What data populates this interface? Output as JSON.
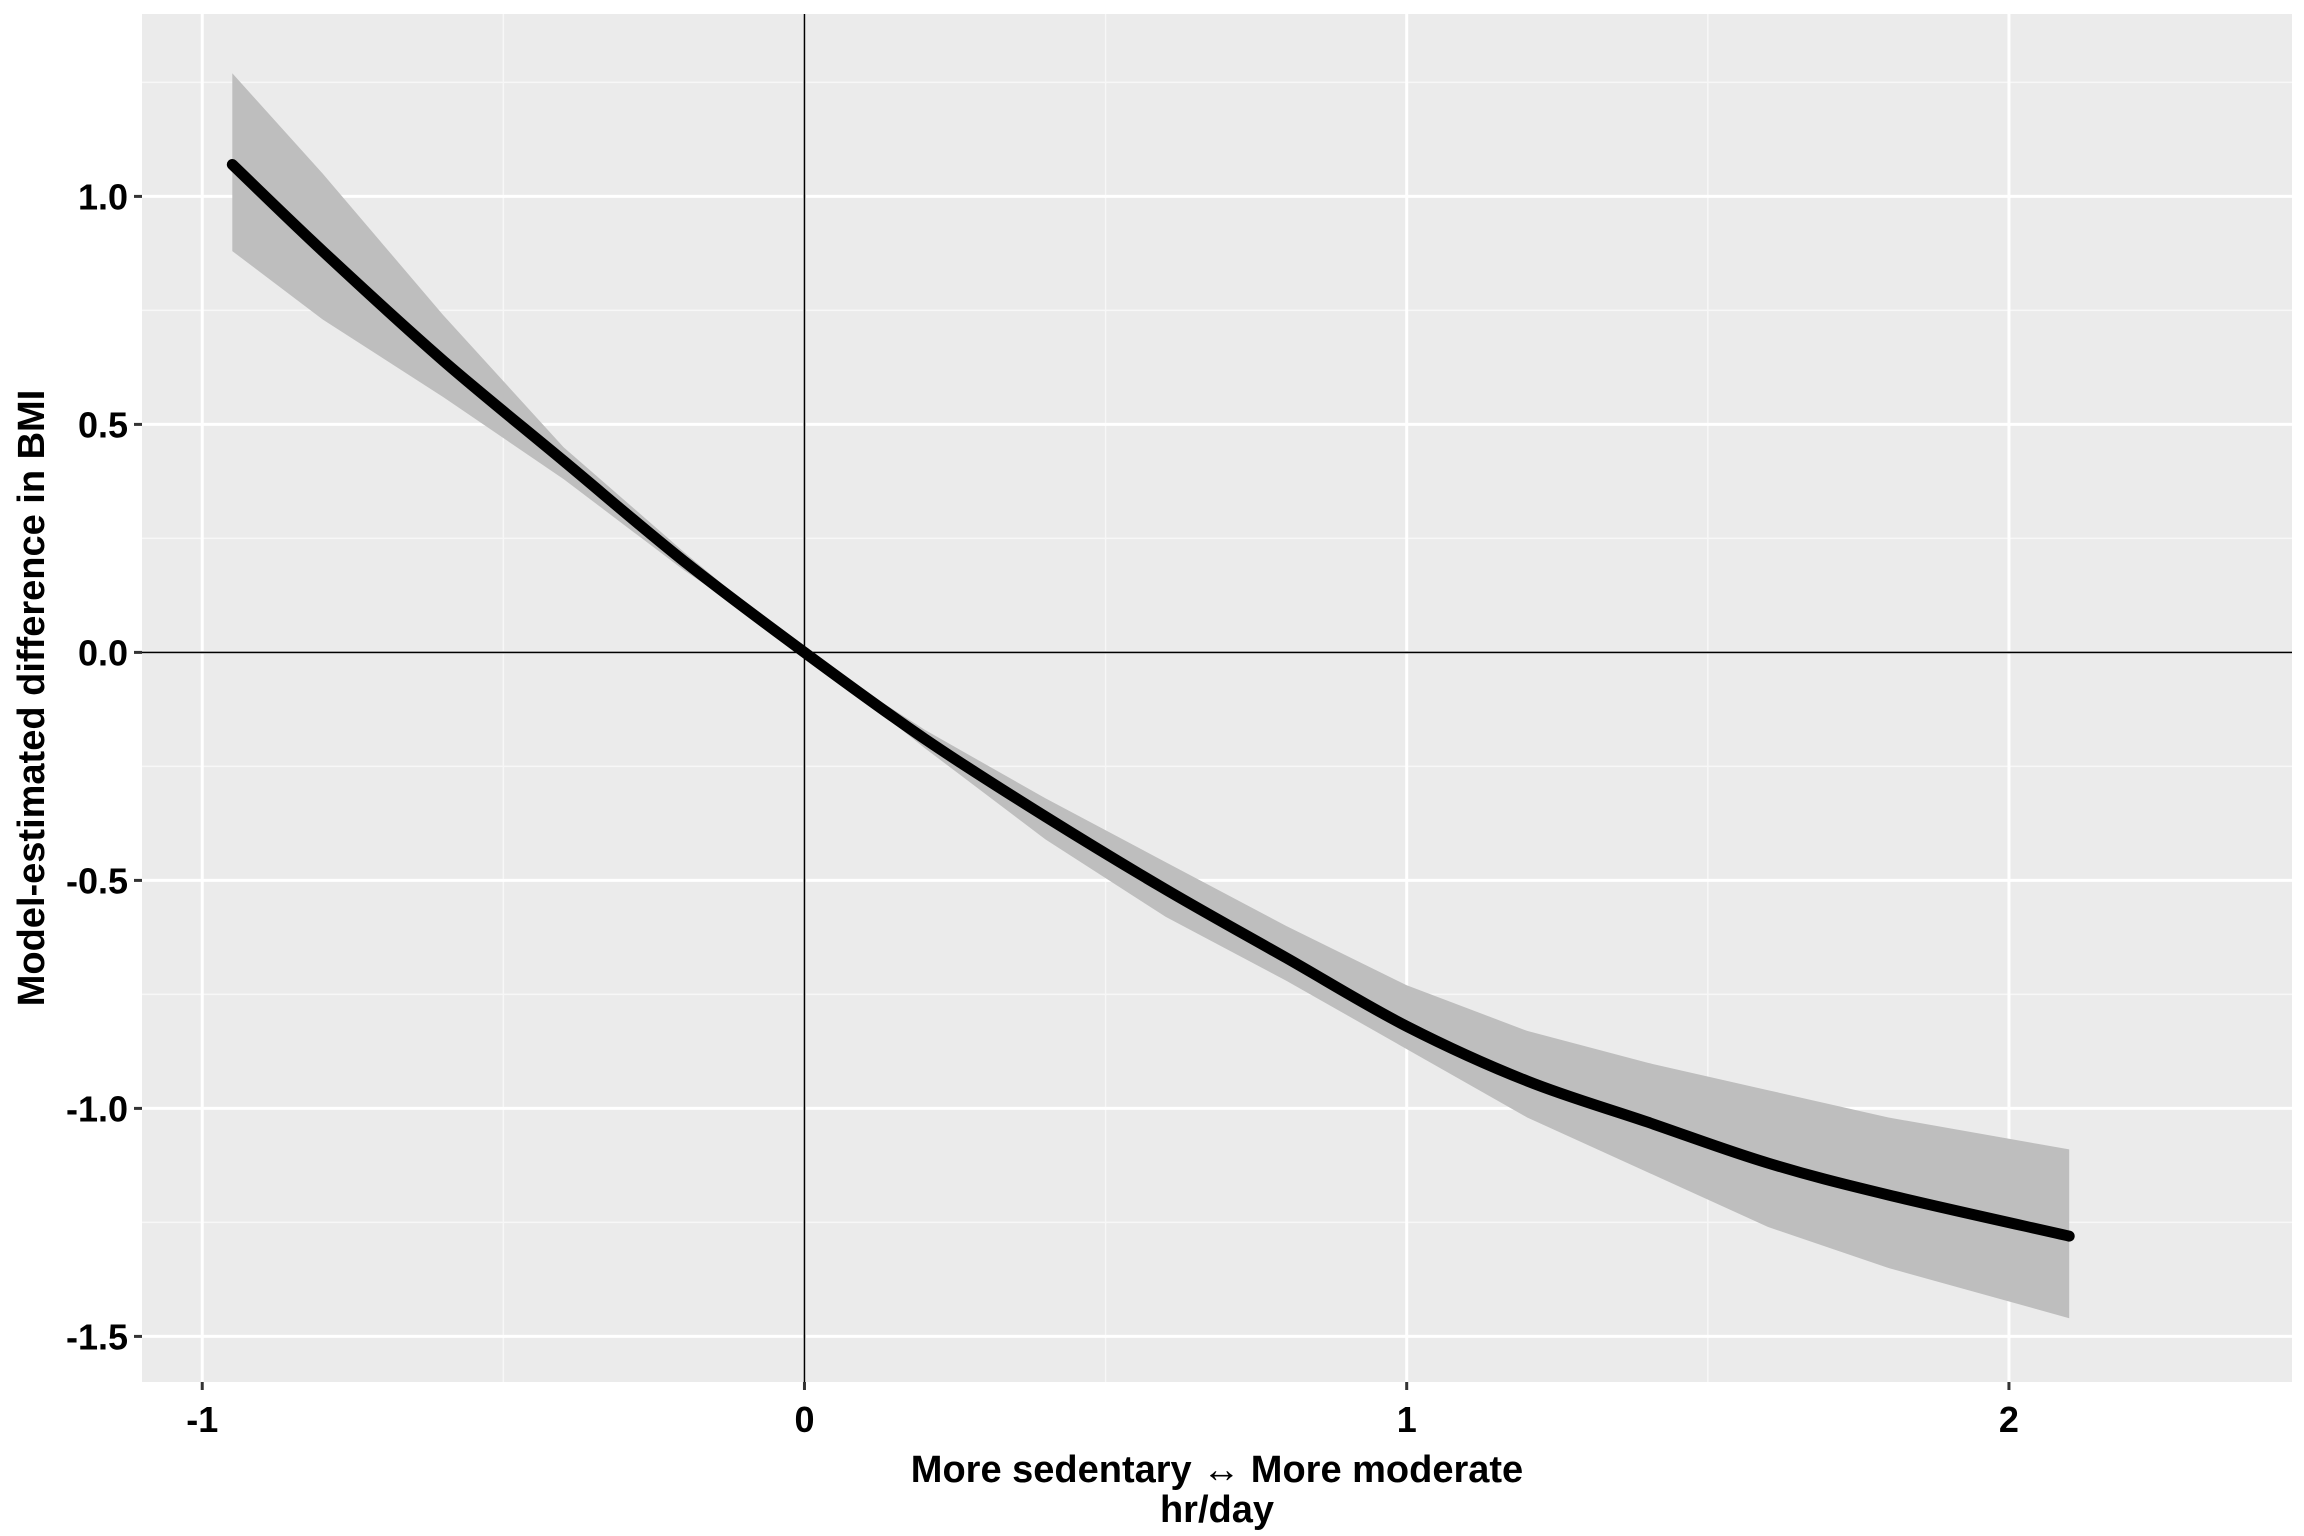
{
  "chart_data": {
    "type": "line",
    "title": "",
    "xlabel": "More sedentary ↔ More moderate",
    "xlabel_sub": "hr/day",
    "ylabel": "Model-estimated difference in BMI",
    "xlim": [
      -1.1,
      2.47
    ],
    "ylim": [
      -1.6,
      1.4
    ],
    "x_ticks": [
      -1,
      0,
      1,
      2
    ],
    "x_tick_labels": [
      "-1",
      "0",
      "1",
      "2"
    ],
    "y_ticks": [
      -1.5,
      -1.0,
      -0.5,
      0.0,
      0.5,
      1.0
    ],
    "y_tick_labels": [
      "-1.5",
      "-1.0",
      "-0.5",
      "0.0",
      "0.5",
      "1.0"
    ],
    "grid": true,
    "reference_lines": {
      "x": 0,
      "y": 0
    },
    "series": [
      {
        "x": [
          -0.95,
          -0.8,
          -0.6,
          -0.4,
          -0.2,
          0.0,
          0.2,
          0.4,
          0.6,
          0.8,
          1.0,
          1.2,
          1.4,
          1.6,
          1.8,
          2.1
        ],
        "y": [
          1.07,
          0.88,
          0.64,
          0.42,
          0.2,
          0.0,
          -0.19,
          -0.36,
          -0.52,
          -0.67,
          -0.82,
          -0.94,
          -1.03,
          -1.12,
          -1.19,
          -1.28
        ],
        "lower": [
          0.88,
          0.73,
          0.56,
          0.38,
          0.18,
          0.0,
          -0.21,
          -0.41,
          -0.58,
          -0.72,
          -0.87,
          -1.02,
          -1.14,
          -1.26,
          -1.35,
          -1.46
        ],
        "upper": [
          1.27,
          1.05,
          0.74,
          0.45,
          0.22,
          0.0,
          -0.17,
          -0.32,
          -0.46,
          -0.6,
          -0.73,
          -0.83,
          -0.9,
          -0.96,
          -1.02,
          -1.09
        ]
      }
    ],
    "colors": {
      "panel_background": "#ebebeb",
      "grid_major": "#ffffff",
      "grid_minor": "#f7f7f7",
      "line": "#000000",
      "ribbon": "#bebebe",
      "reference_line": "#000000"
    }
  }
}
